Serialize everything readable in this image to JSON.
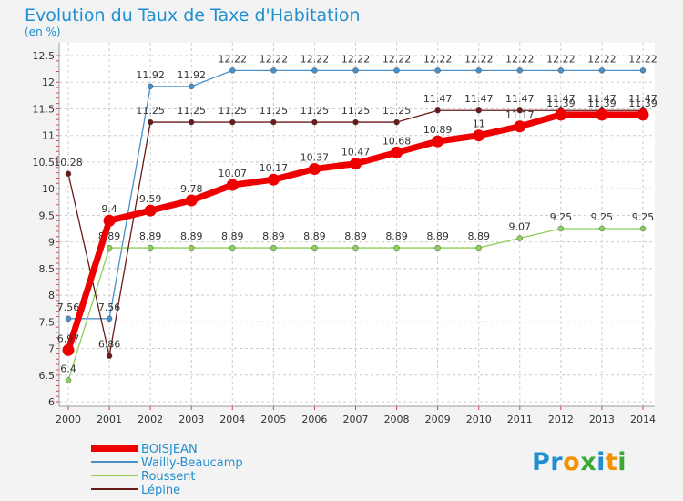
{
  "title": "Evolution du Taux de Taxe d'Habitation",
  "unit_label": "(en %)",
  "logo": {
    "letters": [
      "P",
      "r",
      "o",
      "x",
      "i",
      "t",
      "i"
    ],
    "colors": [
      "#1f8fd1",
      "#1f8fd1",
      "#f39200",
      "#3aaa35",
      "#1f8fd1",
      "#f39200",
      "#3aaa35"
    ]
  },
  "chart_data": {
    "type": "line",
    "x": [
      "2000",
      "2001",
      "2002",
      "2003",
      "2004",
      "2005",
      "2006",
      "2007",
      "2008",
      "2009",
      "2010",
      "2011",
      "2012",
      "2013",
      "2014"
    ],
    "ylim": [
      6,
      12.5
    ],
    "yticks": [
      "6",
      "6.5",
      "7",
      "7.5",
      "8",
      "8.5",
      "9",
      "9.5",
      "10",
      "10.5",
      "11",
      "11.5",
      "12",
      "12.5"
    ],
    "grid": true,
    "legend_position": "bottom-left",
    "series": [
      {
        "name": "Wailly-Beaucamp",
        "color": "#4a90c8",
        "values": [
          7.56,
          7.56,
          11.92,
          11.92,
          12.22,
          12.22,
          12.22,
          12.22,
          12.22,
          12.22,
          12.22,
          12.22,
          12.22,
          12.22,
          12.22
        ],
        "labels": [
          "7.56",
          "7.56",
          "11.92",
          "11.92",
          "12.22",
          "12.22",
          "12.22",
          "12.22",
          "12.22",
          "12.22",
          "12.22",
          "12.22",
          "12.22",
          "12.22",
          "12.22"
        ]
      },
      {
        "name": "Roussent",
        "color": "#8ccf5a",
        "values": [
          6.4,
          8.89,
          8.89,
          8.89,
          8.89,
          8.89,
          8.89,
          8.89,
          8.89,
          8.89,
          8.89,
          9.07,
          9.25,
          9.25,
          9.25
        ],
        "labels": [
          "6.4",
          "8.89",
          "8.89",
          "8.89",
          "8.89",
          "8.89",
          "8.89",
          "8.89",
          "8.89",
          "8.89",
          "8.89",
          "9.07",
          "9.25",
          "9.25",
          "9.25"
        ]
      },
      {
        "name": "Lépine",
        "color": "#6b1a1a",
        "values": [
          10.28,
          6.86,
          11.25,
          11.25,
          11.25,
          11.25,
          11.25,
          11.25,
          11.25,
          11.47,
          11.47,
          11.47,
          11.47,
          11.47,
          11.47
        ],
        "labels": [
          "10.28",
          "6.86",
          "11.25",
          "11.25",
          "11.25",
          "11.25",
          "11.25",
          "11.25",
          "11.25",
          "11.47",
          "11.47",
          "11.47",
          "11.47",
          "11.47",
          "11.47"
        ]
      },
      {
        "name": "BOISJEAN",
        "color": "#ee0000",
        "values": [
          6.97,
          9.4,
          9.59,
          9.78,
          10.07,
          10.17,
          10.37,
          10.47,
          10.68,
          10.89,
          11,
          11.17,
          11.39,
          11.39,
          11.39
        ],
        "labels": [
          "6.97",
          "9.4",
          "9.59",
          "9.78",
          "10.07",
          "10.17",
          "10.37",
          "10.47",
          "10.68",
          "10.89",
          "11",
          "11.17",
          "11.39",
          "11.39",
          "11.39"
        ]
      }
    ],
    "legend": [
      "BOISJEAN",
      "Wailly-Beaucamp",
      "Roussent",
      "Lépine"
    ]
  }
}
